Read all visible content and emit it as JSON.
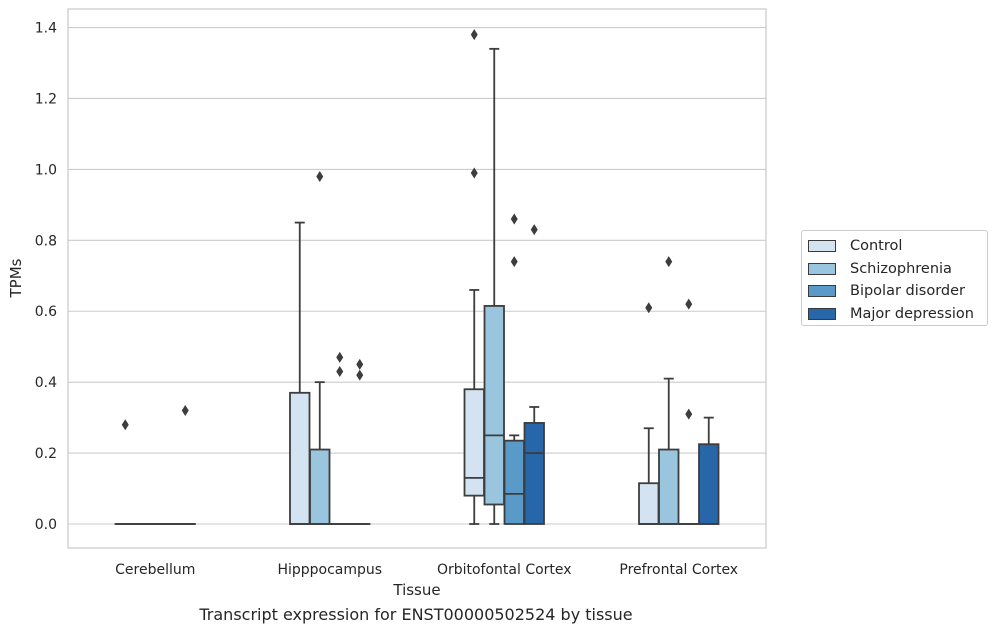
{
  "caption": "Transcript expression for ENST00000502524 by tissue",
  "chart_data": {
    "type": "box",
    "title": "",
    "xlabel": "Tissue",
    "ylabel": "TPMs",
    "categories": [
      "Cerebellum",
      "Hipppocampus",
      "Orbitofontal Cortex",
      "Prefrontal Cortex"
    ],
    "ylim": [
      -0.065,
      1.45
    ],
    "yticks": [
      0.0,
      0.2,
      0.4,
      0.6,
      0.8,
      1.0,
      1.2,
      1.4
    ],
    "ytick_labels": [
      "0.0",
      "0.2",
      "0.4",
      "0.6",
      "0.8",
      "1.0",
      "1.2",
      "1.4"
    ],
    "grid": "horizontal",
    "legend_position": "right",
    "series": [
      {
        "name": "Control",
        "color": "#d4e3f1",
        "boxes": [
          {
            "q1": 0,
            "median": 0,
            "q3": 0,
            "whisker_low": 0,
            "whisker_high": 0,
            "outliers": [
              0.28
            ]
          },
          {
            "q1": 0,
            "median": 0,
            "q3": 0.37,
            "whisker_low": 0,
            "whisker_high": 0.85,
            "outliers": []
          },
          {
            "q1": 0.08,
            "median": 0.13,
            "q3": 0.38,
            "whisker_low": 0,
            "whisker_high": 0.66,
            "outliers": [
              0.99,
              1.38
            ]
          },
          {
            "q1": 0,
            "median": 0,
            "q3": 0.115,
            "whisker_low": 0,
            "whisker_high": 0.27,
            "outliers": [
              0.61
            ]
          }
        ]
      },
      {
        "name": "Schizophrenia",
        "color": "#9ac5df",
        "boxes": [
          {
            "q1": 0,
            "median": 0,
            "q3": 0,
            "whisker_low": 0,
            "whisker_high": 0,
            "outliers": []
          },
          {
            "q1": 0,
            "median": 0,
            "q3": 0.21,
            "whisker_low": 0,
            "whisker_high": 0.4,
            "outliers": [
              0.98
            ]
          },
          {
            "q1": 0.055,
            "median": 0.25,
            "q3": 0.615,
            "whisker_low": 0,
            "whisker_high": 1.34,
            "outliers": []
          },
          {
            "q1": 0,
            "median": 0,
            "q3": 0.21,
            "whisker_low": 0,
            "whisker_high": 0.41,
            "outliers": [
              0.74
            ]
          }
        ]
      },
      {
        "name": "Bipolar disorder",
        "color": "#5a9ac8",
        "boxes": [
          {
            "q1": 0,
            "median": 0,
            "q3": 0,
            "whisker_low": 0,
            "whisker_high": 0,
            "outliers": []
          },
          {
            "q1": 0,
            "median": 0,
            "q3": 0,
            "whisker_low": 0,
            "whisker_high": 0,
            "outliers": [
              0.43,
              0.47
            ]
          },
          {
            "q1": 0,
            "median": 0.085,
            "q3": 0.235,
            "whisker_low": 0,
            "whisker_high": 0.25,
            "outliers": [
              0.74,
              0.86
            ]
          },
          {
            "q1": 0,
            "median": 0,
            "q3": 0,
            "whisker_low": 0,
            "whisker_high": 0,
            "outliers": [
              0.31,
              0.62
            ]
          }
        ]
      },
      {
        "name": "Major depression",
        "color": "#2767a9",
        "boxes": [
          {
            "q1": 0,
            "median": 0,
            "q3": 0,
            "whisker_low": 0,
            "whisker_high": 0,
            "outliers": [
              0.32
            ]
          },
          {
            "q1": 0,
            "median": 0,
            "q3": 0,
            "whisker_low": 0,
            "whisker_high": 0,
            "outliers": [
              0.42,
              0.45
            ]
          },
          {
            "q1": 0,
            "median": 0.2,
            "q3": 0.285,
            "whisker_low": 0,
            "whisker_high": 0.33,
            "outliers": [
              0.83
            ]
          },
          {
            "q1": 0,
            "median": 0,
            "q3": 0.225,
            "whisker_low": 0,
            "whisker_high": 0.3,
            "outliers": []
          }
        ]
      }
    ]
  }
}
